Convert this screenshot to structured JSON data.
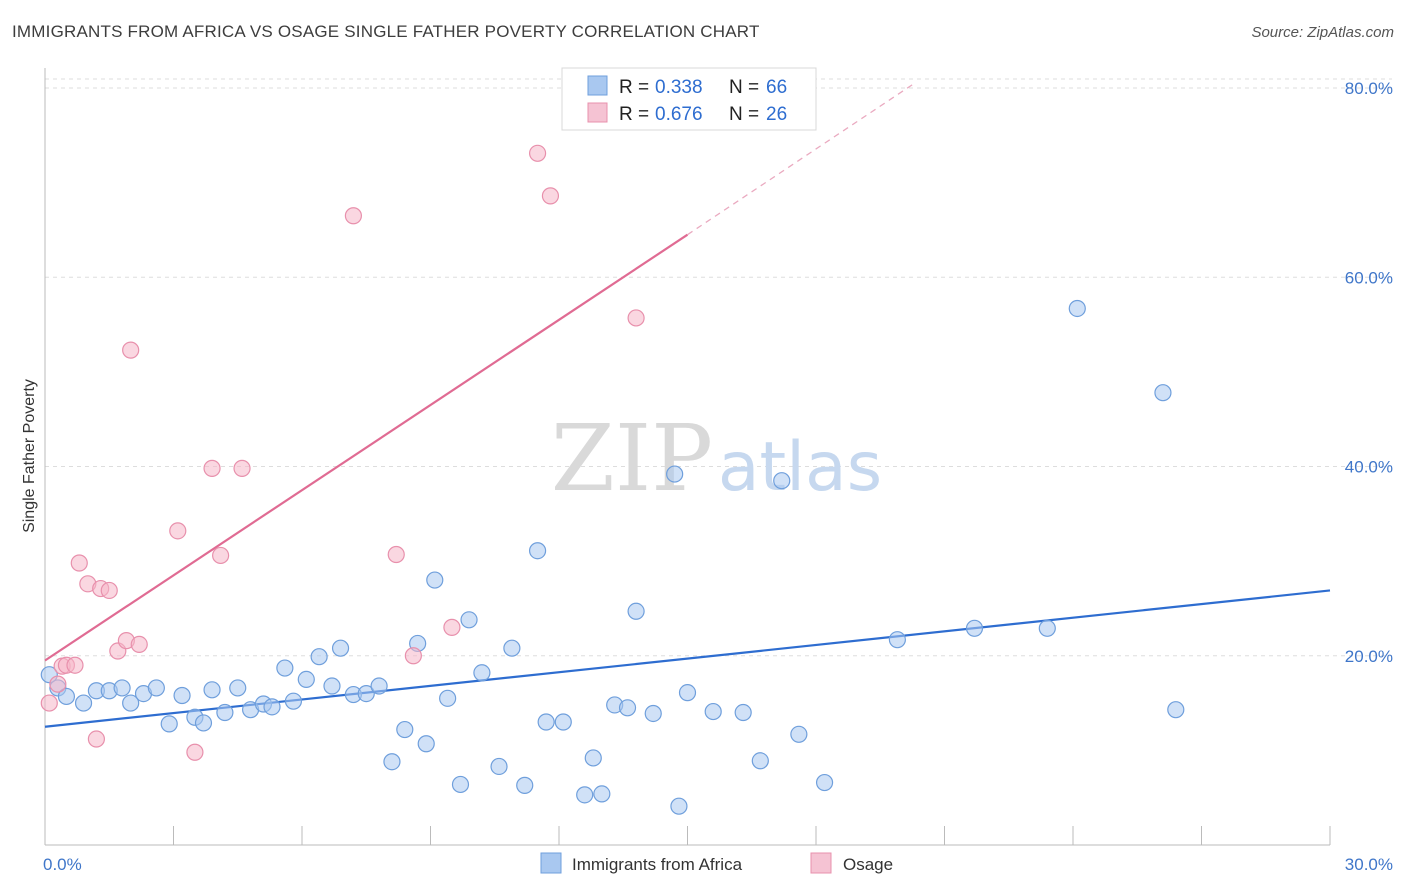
{
  "title": "IMMIGRANTS FROM AFRICA VS OSAGE SINGLE FATHER POVERTY CORRELATION CHART",
  "source": "Source: ZipAtlas.com",
  "watermark": {
    "zip": "ZIP",
    "atlas": "atlas"
  },
  "colors": {
    "blue_fill": "#a9c8f0",
    "blue_stroke": "#6f9fdc",
    "blue_line": "#2e6dd0",
    "pink_fill": "#f5b6c9",
    "pink_stroke": "#e890ac",
    "pink_line": "#e06b93",
    "tick_text": "#3f76c9",
    "grid": "#dddddd"
  },
  "legend_top": {
    "rows": [
      {
        "r_label": "R =",
        "r_value": "0.338",
        "n_label": "N =",
        "n_value": "66",
        "series": "blue"
      },
      {
        "r_label": "R =",
        "r_value": "0.676",
        "n_label": "N =",
        "n_value": "26",
        "series": "pink"
      }
    ]
  },
  "legend_bottom": {
    "items": [
      {
        "label": "Immigrants from Africa",
        "series": "blue"
      },
      {
        "label": "Osage",
        "series": "pink"
      }
    ]
  },
  "chart_data": {
    "type": "scatter",
    "ylabel": "Single Father Poverty",
    "xlim": [
      0,
      30
    ],
    "ylim": [
      0,
      80
    ],
    "x_tick_labels": [
      {
        "value": 0,
        "label": "0.0%"
      },
      {
        "value": 30,
        "label": "30.0%"
      }
    ],
    "y_tick_labels": [
      {
        "value": 20,
        "label": "20.0%"
      },
      {
        "value": 40,
        "label": "40.0%"
      },
      {
        "value": 60,
        "label": "60.0%"
      },
      {
        "value": 80,
        "label": "80.0%"
      }
    ],
    "grid": true,
    "series": [
      {
        "name": "Immigrants from Africa",
        "color": "blue",
        "R": 0.338,
        "N": 66,
        "trend": {
          "x": [
            0,
            30
          ],
          "y": [
            12.5,
            26.9
          ],
          "dashed_extension": false
        },
        "points": [
          {
            "x": 0.3,
            "y": 16.6
          },
          {
            "x": 0.5,
            "y": 15.7
          },
          {
            "x": 0.9,
            "y": 15.0
          },
          {
            "x": 1.2,
            "y": 16.3
          },
          {
            "x": 1.5,
            "y": 16.3
          },
          {
            "x": 1.8,
            "y": 16.6
          },
          {
            "x": 2.0,
            "y": 15.0
          },
          {
            "x": 2.3,
            "y": 16.0
          },
          {
            "x": 2.6,
            "y": 16.6
          },
          {
            "x": 2.9,
            "y": 12.8
          },
          {
            "x": 3.2,
            "y": 15.8
          },
          {
            "x": 3.5,
            "y": 13.5
          },
          {
            "x": 3.7,
            "y": 12.9
          },
          {
            "x": 3.9,
            "y": 16.4
          },
          {
            "x": 4.2,
            "y": 14.0
          },
          {
            "x": 4.5,
            "y": 16.6
          },
          {
            "x": 4.8,
            "y": 14.3
          },
          {
            "x": 5.1,
            "y": 14.9
          },
          {
            "x": 5.3,
            "y": 14.6
          },
          {
            "x": 5.6,
            "y": 18.7
          },
          {
            "x": 5.8,
            "y": 15.2
          },
          {
            "x": 6.1,
            "y": 17.5
          },
          {
            "x": 6.4,
            "y": 19.9
          },
          {
            "x": 6.7,
            "y": 16.8
          },
          {
            "x": 6.9,
            "y": 20.8
          },
          {
            "x": 7.2,
            "y": 15.9
          },
          {
            "x": 7.5,
            "y": 16.0
          },
          {
            "x": 7.8,
            "y": 16.8
          },
          {
            "x": 8.1,
            "y": 8.8
          },
          {
            "x": 8.4,
            "y": 12.2
          },
          {
            "x": 8.7,
            "y": 21.3
          },
          {
            "x": 8.9,
            "y": 10.7
          },
          {
            "x": 9.1,
            "y": 28.0
          },
          {
            "x": 9.4,
            "y": 15.5
          },
          {
            "x": 9.7,
            "y": 6.4
          },
          {
            "x": 9.9,
            "y": 23.8
          },
          {
            "x": 10.2,
            "y": 18.2
          },
          {
            "x": 10.6,
            "y": 8.3
          },
          {
            "x": 10.9,
            "y": 20.8
          },
          {
            "x": 11.2,
            "y": 6.3
          },
          {
            "x": 11.5,
            "y": 31.1
          },
          {
            "x": 11.7,
            "y": 13.0
          },
          {
            "x": 12.1,
            "y": 13.0
          },
          {
            "x": 12.6,
            "y": 5.3
          },
          {
            "x": 12.8,
            "y": 9.2
          },
          {
            "x": 13.0,
            "y": 5.4
          },
          {
            "x": 13.3,
            "y": 14.8
          },
          {
            "x": 13.6,
            "y": 14.5
          },
          {
            "x": 13.8,
            "y": 24.7
          },
          {
            "x": 14.2,
            "y": 13.9
          },
          {
            "x": 14.7,
            "y": 39.2
          },
          {
            "x": 14.8,
            "y": 4.1
          },
          {
            "x": 15.0,
            "y": 16.1
          },
          {
            "x": 15.6,
            "y": 14.1
          },
          {
            "x": 16.3,
            "y": 14.0
          },
          {
            "x": 16.7,
            "y": 8.9
          },
          {
            "x": 17.2,
            "y": 38.5
          },
          {
            "x": 17.6,
            "y": 11.7
          },
          {
            "x": 18.2,
            "y": 6.6
          },
          {
            "x": 19.9,
            "y": 21.7
          },
          {
            "x": 21.7,
            "y": 22.9
          },
          {
            "x": 23.4,
            "y": 22.9
          },
          {
            "x": 24.1,
            "y": 56.7
          },
          {
            "x": 26.1,
            "y": 47.8
          },
          {
            "x": 26.4,
            "y": 14.3
          },
          {
            "x": 0.1,
            "y": 18.0
          }
        ]
      },
      {
        "name": "Osage",
        "color": "pink",
        "R": 0.676,
        "N": 26,
        "trend": {
          "x": [
            0,
            15
          ],
          "y": [
            19.5,
            64.5
          ],
          "dash_to": {
            "x": 20.3,
            "y": 80.5
          }
        },
        "points": [
          {
            "x": 0.1,
            "y": 15.0
          },
          {
            "x": 0.3,
            "y": 17.0
          },
          {
            "x": 0.4,
            "y": 18.9
          },
          {
            "x": 0.5,
            "y": 19.0
          },
          {
            "x": 0.7,
            "y": 19.0
          },
          {
            "x": 0.8,
            "y": 29.8
          },
          {
            "x": 1.0,
            "y": 27.6
          },
          {
            "x": 1.2,
            "y": 11.2
          },
          {
            "x": 1.3,
            "y": 27.1
          },
          {
            "x": 1.5,
            "y": 26.9
          },
          {
            "x": 1.7,
            "y": 20.5
          },
          {
            "x": 1.9,
            "y": 21.6
          },
          {
            "x": 2.0,
            "y": 52.3
          },
          {
            "x": 2.2,
            "y": 21.2
          },
          {
            "x": 3.1,
            "y": 33.2
          },
          {
            "x": 3.5,
            "y": 9.8
          },
          {
            "x": 3.9,
            "y": 39.8
          },
          {
            "x": 4.1,
            "y": 30.6
          },
          {
            "x": 4.6,
            "y": 39.8
          },
          {
            "x": 7.2,
            "y": 66.5
          },
          {
            "x": 8.2,
            "y": 30.7
          },
          {
            "x": 8.6,
            "y": 20.0
          },
          {
            "x": 9.5,
            "y": 23.0
          },
          {
            "x": 11.5,
            "y": 73.1
          },
          {
            "x": 11.8,
            "y": 68.6
          },
          {
            "x": 13.8,
            "y": 55.7
          }
        ]
      }
    ]
  }
}
